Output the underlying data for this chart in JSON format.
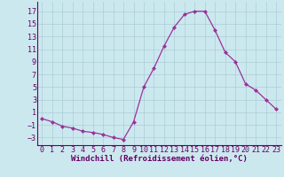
{
  "x": [
    0,
    1,
    2,
    3,
    4,
    5,
    6,
    7,
    8,
    9,
    10,
    11,
    12,
    13,
    14,
    15,
    16,
    17,
    18,
    19,
    20,
    21,
    22,
    23
  ],
  "y": [
    0.0,
    -0.5,
    -1.2,
    -1.5,
    -2.0,
    -2.2,
    -2.5,
    -3.0,
    -3.3,
    -0.5,
    5.0,
    8.0,
    11.5,
    14.5,
    16.5,
    17.0,
    17.0,
    14.0,
    10.5,
    9.0,
    5.5,
    4.5,
    3.0,
    1.5
  ],
  "line_color": "#993399",
  "marker": "D",
  "marker_size": 2.0,
  "bg_color": "#cce8ef",
  "grid_color": "#aacdd6",
  "xlabel": "Windchill (Refroidissement éolien,°C)",
  "xlim": [
    -0.5,
    23.5
  ],
  "ylim": [
    -4.2,
    18.5
  ],
  "yticks": [
    -3,
    -1,
    1,
    3,
    5,
    7,
    9,
    11,
    13,
    15,
    17
  ],
  "xticks": [
    0,
    1,
    2,
    3,
    4,
    5,
    6,
    7,
    8,
    9,
    10,
    11,
    12,
    13,
    14,
    15,
    16,
    17,
    18,
    19,
    20,
    21,
    22,
    23
  ],
  "xlabel_color": "#660066",
  "tick_color": "#660066",
  "axis_color": "#660066",
  "font_size_label": 6.5,
  "font_size_tick": 6.0
}
